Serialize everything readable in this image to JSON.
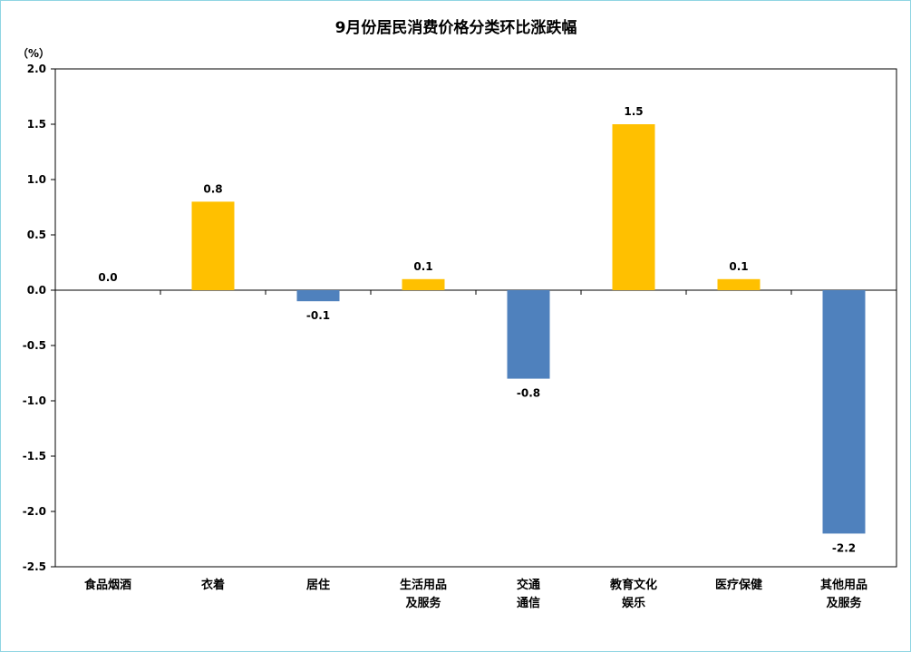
{
  "chart_data": {
    "type": "bar",
    "title": "9月份居民消费价格分类环比涨跌幅",
    "ylabel": "（%）",
    "xlabel": "",
    "ylim": [
      -2.5,
      2.0
    ],
    "yticks": [
      "2.0",
      "1.5",
      "1.0",
      "0.5",
      "0.0",
      "-0.5",
      "-1.0",
      "-1.5",
      "-2.0",
      "-2.5"
    ],
    "ytick_values": [
      2.0,
      1.5,
      1.0,
      0.5,
      0.0,
      -0.5,
      -1.0,
      -1.5,
      -2.0,
      -2.5
    ],
    "categories": [
      [
        "食品烟酒"
      ],
      [
        "衣着"
      ],
      [
        "居住"
      ],
      [
        "生活用品",
        "及服务"
      ],
      [
        "交通",
        "通信"
      ],
      [
        "教育文化",
        "娱乐"
      ],
      [
        "医疗保健"
      ],
      [
        "其他用品",
        "及服务"
      ]
    ],
    "values": [
      0.0,
      0.8,
      -0.1,
      0.1,
      -0.8,
      1.5,
      0.1,
      -2.2
    ],
    "data_labels": [
      "0.0",
      "0.8",
      "-0.1",
      "0.1",
      "-0.8",
      "1.5",
      "0.1",
      "-2.2"
    ],
    "colors": {
      "positive": "#ffc000",
      "negative": "#4f81bd",
      "axis": "#000000",
      "frame": "#8fd5e3"
    },
    "grid": false,
    "legend": "none"
  }
}
